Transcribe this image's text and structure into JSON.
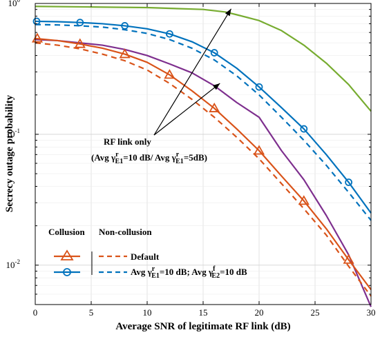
{
  "chart_data": {
    "type": "line",
    "xlabel": "Average SNR of legitimate RF link (dB)",
    "ylabel": "Secrecy outage probability",
    "xlim": [
      0,
      30
    ],
    "ylim": [
      0.005,
      1
    ],
    "yscale": "log",
    "grid": true,
    "xticks": [
      0,
      5,
      10,
      15,
      20,
      25,
      30
    ],
    "yticks": [
      {
        "value": 1,
        "base": "10",
        "exp": "0"
      },
      {
        "value": 0.1,
        "base": "10",
        "exp": "-1"
      },
      {
        "value": 0.01,
        "base": "10",
        "exp": "-2"
      }
    ],
    "series": [
      {
        "color": "#77ac30",
        "style": "solid",
        "marker": "none",
        "x": [
          0,
          5,
          10,
          15,
          17,
          18,
          20,
          22,
          24,
          26,
          28,
          30
        ],
        "y": [
          0.95,
          0.94,
          0.93,
          0.9,
          0.86,
          0.82,
          0.74,
          0.62,
          0.48,
          0.35,
          0.24,
          0.15
        ]
      },
      {
        "color": "#0072bd",
        "style": "solid",
        "marker": "circle",
        "x": [
          0,
          2,
          4,
          6,
          8,
          10,
          12,
          14,
          16,
          18,
          20,
          22,
          24,
          26,
          28,
          30
        ],
        "y": [
          0.73,
          0.725,
          0.715,
          0.7,
          0.675,
          0.64,
          0.585,
          0.51,
          0.42,
          0.32,
          0.23,
          0.16,
          0.11,
          0.07,
          0.043,
          0.025
        ]
      },
      {
        "color": "#0072bd",
        "style": "dashed",
        "marker": "none",
        "x": [
          0,
          2,
          4,
          6,
          8,
          10,
          12,
          14,
          16,
          18,
          20,
          22,
          24,
          26,
          28,
          30
        ],
        "y": [
          0.69,
          0.685,
          0.675,
          0.66,
          0.63,
          0.59,
          0.53,
          0.455,
          0.37,
          0.28,
          0.2,
          0.135,
          0.09,
          0.058,
          0.036,
          0.022
        ]
      },
      {
        "color": "#7e2f8e",
        "style": "solid",
        "marker": "none",
        "x": [
          0,
          2,
          4,
          6,
          8,
          10,
          12,
          14,
          16,
          18,
          20,
          22,
          24,
          26,
          28,
          30
        ],
        "y": [
          0.53,
          0.52,
          0.5,
          0.48,
          0.445,
          0.4,
          0.345,
          0.295,
          0.235,
          0.175,
          0.135,
          0.075,
          0.045,
          0.024,
          0.012,
          0.0048
        ]
      },
      {
        "color": "#d95319",
        "style": "solid",
        "marker": "triangle",
        "x": [
          0,
          2,
          4,
          6,
          8,
          10,
          12,
          14,
          16,
          18,
          20,
          22,
          24,
          26,
          28,
          30
        ],
        "y": [
          0.54,
          0.52,
          0.49,
          0.455,
          0.41,
          0.355,
          0.285,
          0.215,
          0.158,
          0.11,
          0.075,
          0.048,
          0.031,
          0.019,
          0.011,
          0.0065
        ]
      },
      {
        "color": "#d95319",
        "style": "dashed",
        "marker": "none",
        "x": [
          0,
          2,
          4,
          6,
          8,
          10,
          12,
          14,
          16,
          18,
          20,
          22,
          24,
          26,
          28,
          30
        ],
        "y": [
          0.5,
          0.48,
          0.45,
          0.41,
          0.365,
          0.31,
          0.245,
          0.185,
          0.135,
          0.095,
          0.065,
          0.042,
          0.027,
          0.017,
          0.0098,
          0.0058
        ]
      }
    ],
    "annotation": {
      "line1": "RF link only",
      "line2_parts": [
        "(Avg  γ",
        "r",
        "E1",
        "=10 dB/ Avg  γ",
        "r",
        "E1",
        "=5dB)"
      ],
      "arrow_targets": [
        [
          17.5,
          0.91
        ],
        [
          16.5,
          0.245
        ]
      ]
    },
    "legend": {
      "placement": "bottom-left",
      "header_left": "Collusion",
      "header_right": "Non-collusion",
      "entry1_label": "Default",
      "entry2_parts": [
        "Avg  γ",
        "r",
        "E1",
        "=10 dB;  Avg  γ",
        "f",
        "E2",
        "=10 dB"
      ],
      "entry1_color": "#d95319",
      "entry2_color": "#0072bd"
    }
  }
}
